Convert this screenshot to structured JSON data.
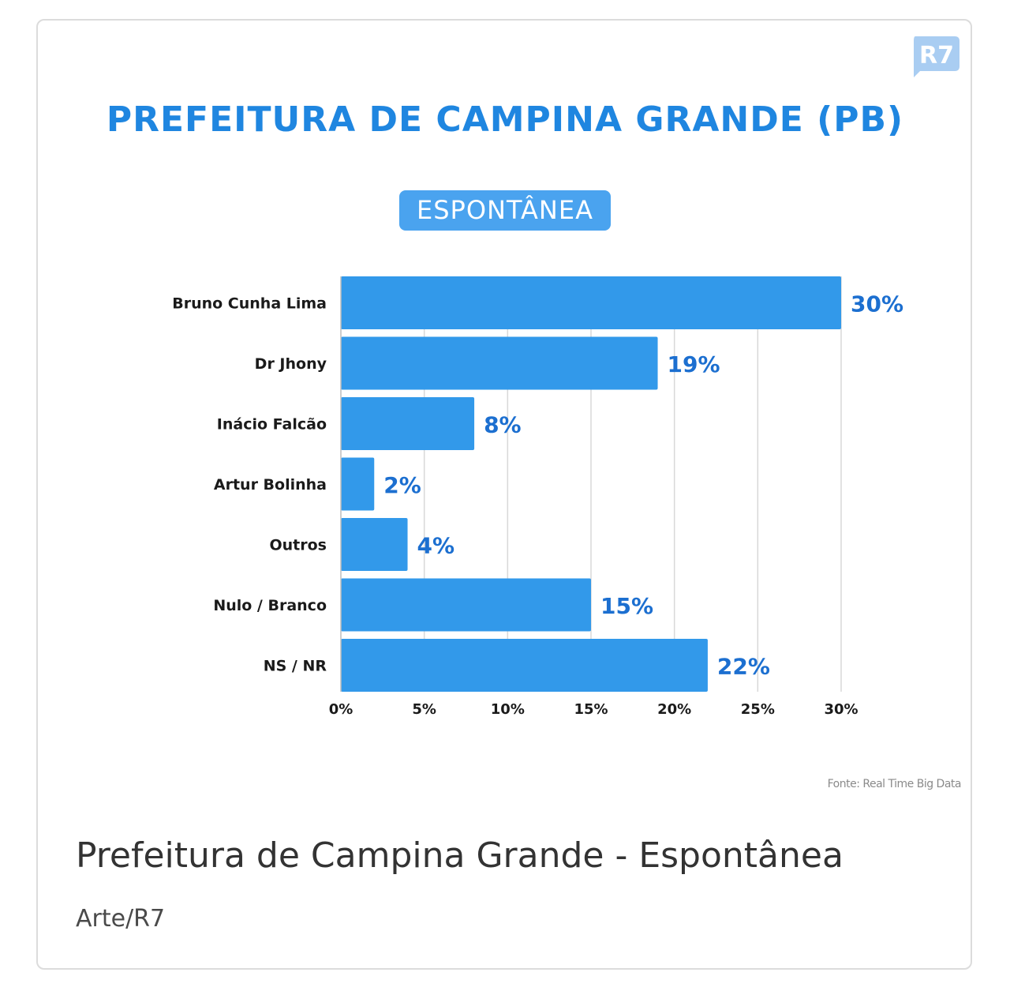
{
  "logo_text": "R7",
  "colors": {
    "bar": "#3299ea",
    "title": "#1f86e0",
    "value_label": "#1c6fd0",
    "pill": "#4aa3ef",
    "grid": "#d8d8d8"
  },
  "chart_data": {
    "type": "bar",
    "orientation": "horizontal",
    "title": "PREFEITURA DE CAMPINA GRANDE (PB)",
    "subtitle": "ESPONTÂNEA",
    "categories": [
      "Bruno Cunha Lima",
      "Dr Jhony",
      "Inácio Falcão",
      "Artur Bolinha",
      "Outros",
      "Nulo / Branco",
      "NS / NR"
    ],
    "values": [
      30,
      19,
      8,
      2,
      4,
      15,
      22
    ],
    "value_labels": [
      "30%",
      "19%",
      "8%",
      "2%",
      "4%",
      "15%",
      "22%"
    ],
    "xticks": [
      0,
      5,
      10,
      15,
      20,
      25,
      30
    ],
    "xtick_labels": [
      "0%",
      "5%",
      "10%",
      "15%",
      "20%",
      "25%",
      "30%"
    ],
    "xlim": [
      0,
      30
    ],
    "grid": true,
    "source": "Fonte: Real Time Big Data"
  },
  "caption": {
    "title": "Prefeitura de Campina Grande - Espontânea",
    "credit": "Arte/R7"
  }
}
